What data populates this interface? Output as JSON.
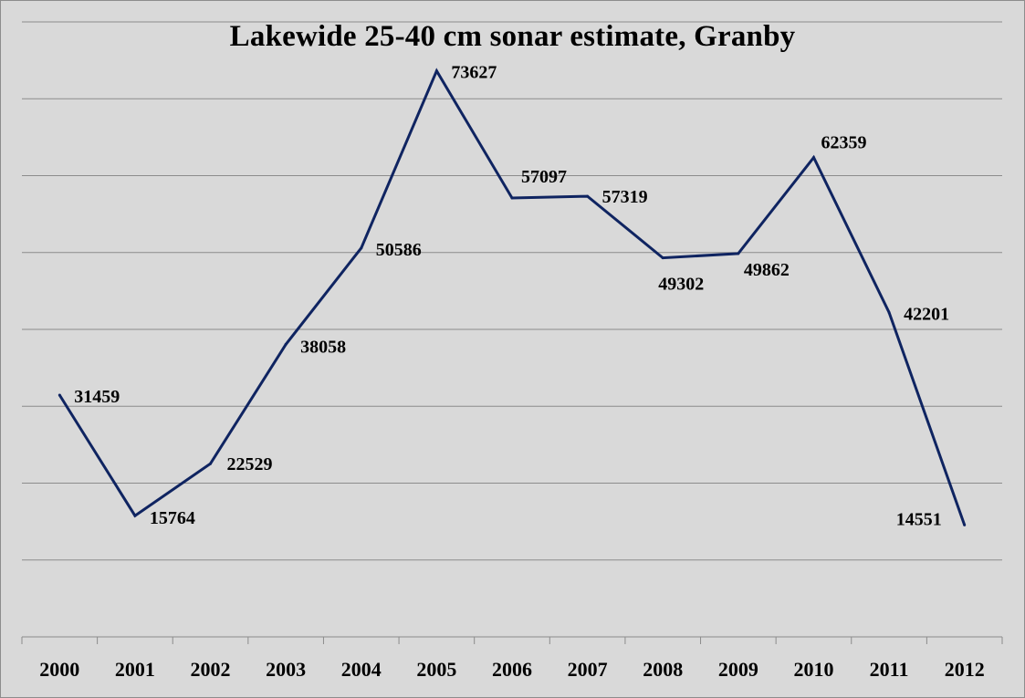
{
  "chart_data": {
    "type": "line",
    "title": "Lakewide 25-40 cm sonar estimate, Granby",
    "xlabel": "",
    "ylabel": "",
    "categories": [
      "2000",
      "2001",
      "2002",
      "2003",
      "2004",
      "2005",
      "2006",
      "2007",
      "2008",
      "2009",
      "2010",
      "2011",
      "2012"
    ],
    "series": [
      {
        "values": [
          31459,
          15764,
          22529,
          38058,
          50586,
          73627,
          57097,
          57319,
          49302,
          49862,
          62359,
          42201,
          14551
        ],
        "data_labels": [
          "31459",
          "15764",
          "22529",
          "38058",
          "50586",
          "73627",
          "57097",
          "57319",
          "49302",
          "49862",
          "62359",
          "42201",
          "14551"
        ]
      }
    ],
    "ylim": [
      0,
      80000
    ],
    "y_gridline_step": 10000,
    "y_tick_labels_shown": false,
    "grid": true,
    "legend": "none",
    "colors": {
      "line": "#0f2461",
      "plot_background": "#d9d9d9",
      "gridline": "#8c8c8c",
      "text": "#000000"
    }
  }
}
